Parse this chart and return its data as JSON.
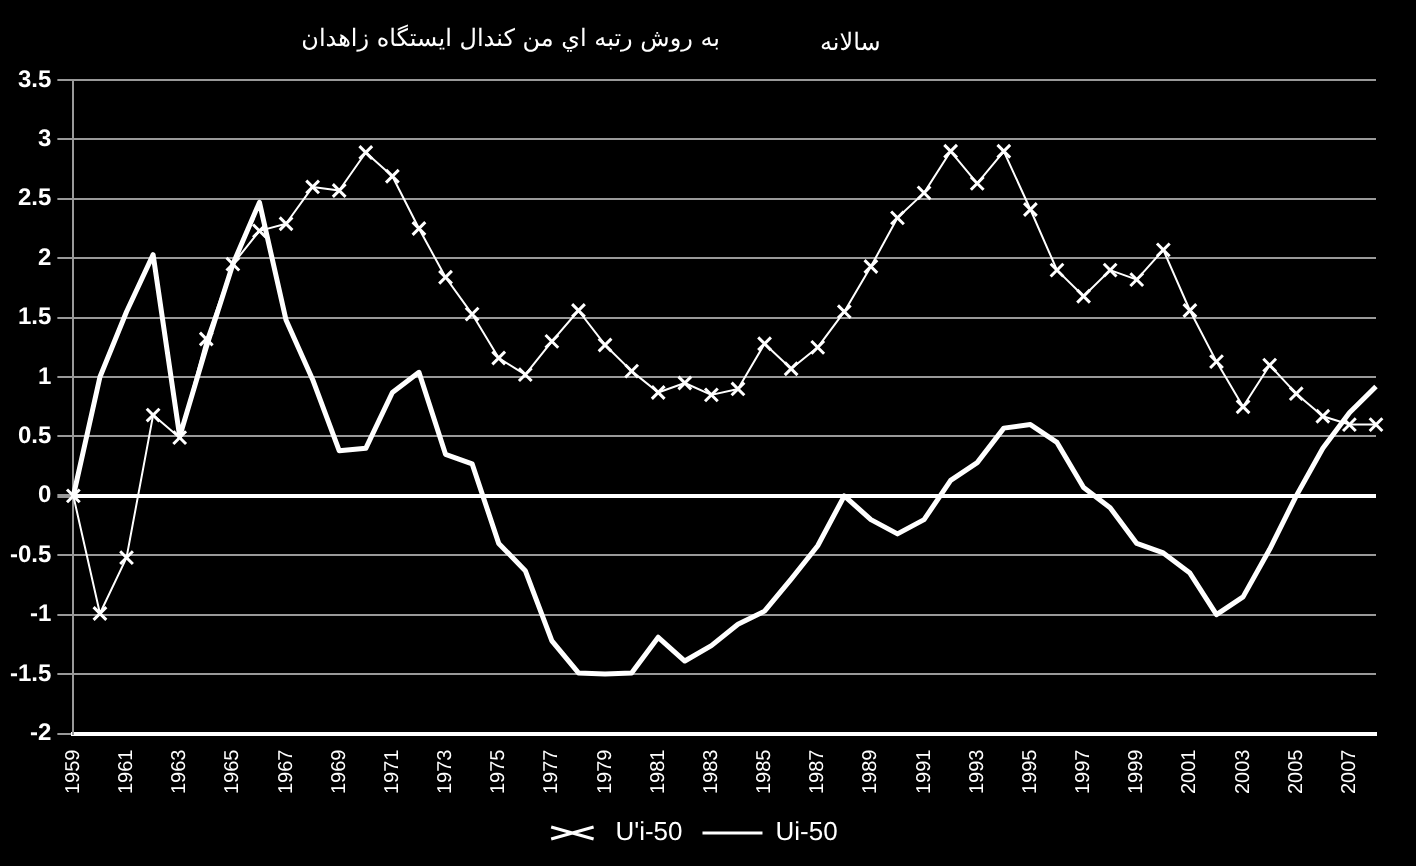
{
  "chart_data": {
    "type": "line",
    "title": "به روش رتبه اي من كندال ايستگاه  زاهدان",
    "subtitle": "سالانه",
    "categories": [
      "1959",
      null,
      "1961",
      null,
      "1963",
      null,
      "1965",
      null,
      "1967",
      null,
      "1969",
      null,
      "1971",
      null,
      "1973",
      null,
      "1975",
      null,
      "1977",
      null,
      "1979",
      null,
      "1981",
      null,
      "1983",
      null,
      "1985",
      null,
      "1987",
      null,
      "1989",
      null,
      "1991",
      null,
      "1993",
      null,
      "1995",
      null,
      "1997",
      null,
      "1999",
      null,
      "2001",
      null,
      "2003",
      null,
      "2005",
      null,
      "2007",
      null
    ],
    "series": [
      {
        "name": "Ui-50",
        "color": "#ffffff",
        "marker": "none",
        "values": [
          0,
          1.0,
          1.55,
          2.03,
          0.5,
          1.25,
          1.95,
          2.47,
          1.48,
          0.98,
          0.38,
          0.4,
          0.87,
          1.04,
          0.35,
          0.27,
          -0.4,
          -0.63,
          -1.22,
          -1.49,
          -1.5,
          -1.49,
          -1.19,
          -1.39,
          -1.26,
          -1.08,
          -0.97,
          -0.7,
          -0.42,
          0,
          -0.2,
          -0.32,
          -0.2,
          0.13,
          0.28,
          0.57,
          0.6,
          0.45,
          0.07,
          -0.1,
          -0.4,
          -0.48,
          -0.65,
          -1.0,
          -0.85,
          -0.45,
          0,
          0.4,
          0.7,
          0.92
        ]
      },
      {
        "name": "U'i-50",
        "color": "#ffffff",
        "marker": "cross",
        "values": [
          0,
          -0.99,
          -0.52,
          0.68,
          0.49,
          1.32,
          1.95,
          2.23,
          2.29,
          2.6,
          2.57,
          2.89,
          2.69,
          2.25,
          1.84,
          1.53,
          1.16,
          1.02,
          1.3,
          1.56,
          1.27,
          1.05,
          0.87,
          0.95,
          0.85,
          0.9,
          1.28,
          1.07,
          1.25,
          1.55,
          1.93,
          2.34,
          2.55,
          2.9,
          2.63,
          2.9,
          2.41,
          1.9,
          1.68,
          1.9,
          1.82,
          2.07,
          1.56,
          1.13,
          0.75,
          1.1,
          0.86,
          0.67,
          0.6,
          0.6
        ]
      }
    ],
    "ylim": [
      -2,
      3.5
    ],
    "yticks": [
      -2,
      -1.5,
      -1,
      -0.5,
      0,
      0.5,
      1,
      1.5,
      2,
      2.5,
      3,
      3.5
    ],
    "grid": "y",
    "legend": "bottom"
  }
}
